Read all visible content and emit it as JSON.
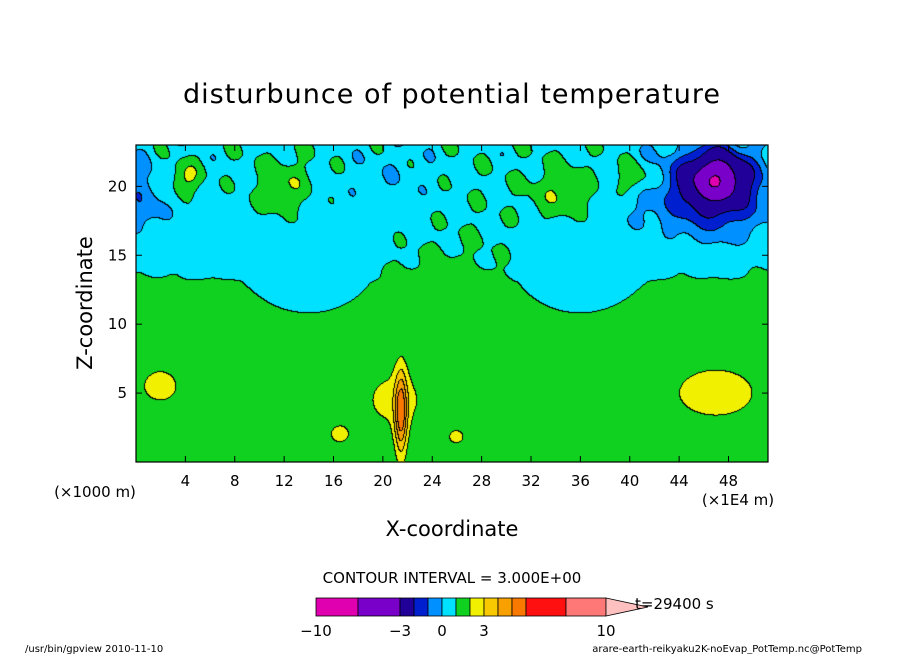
{
  "chart_data": {
    "type": "heatmap",
    "title": "disturbunce of potential temperature",
    "xlabel": "X-coordinate",
    "ylabel": "Z-coordinate",
    "x_unit_left": "(×1000 m)",
    "x_unit_right": "(×1E4 m)",
    "xlim": [
      0,
      51.2
    ],
    "ylim": [
      0,
      23
    ],
    "x_ticks": [
      4,
      8,
      12,
      16,
      20,
      24,
      28,
      32,
      36,
      40,
      44,
      48
    ],
    "y_ticks": [
      5,
      10,
      15,
      20
    ],
    "contour_interval_label": "CONTOUR INTERVAL = 3.000E+00",
    "time_label": "t=29400 s",
    "colorbar": {
      "levels": [
        -10,
        -6,
        -3,
        -2,
        -1,
        0,
        1,
        2,
        3,
        4,
        6,
        10
      ],
      "tick_labels": [
        "−10",
        "−3",
        "0",
        "3",
        "10"
      ],
      "tick_values": [
        -10,
        -3,
        0,
        3,
        10
      ],
      "colors": [
        "#e000b0",
        "#7800c8",
        "#200098",
        "#0020d0",
        "#0090ff",
        "#00e0ff",
        "#10d020",
        "#f0f000",
        "#f8c800",
        "#f8a000",
        "#f87800",
        "#ff1010",
        "#ff7878",
        "#ffc0c0"
      ]
    },
    "blobs": [
      {
        "x": 4,
        "z": 17.5,
        "sx": 3.5,
        "sz": 3.5,
        "v": -0.6
      },
      {
        "x": 47,
        "z": 19.5,
        "sx": 4.5,
        "sz": 3.5,
        "v": -3.2
      },
      {
        "x": 47,
        "z": 20.5,
        "sx": 2.0,
        "sz": 1.6,
        "v": -7
      },
      {
        "x": 0.5,
        "z": 19,
        "sx": 1.5,
        "sz": 3,
        "v": -1.4
      },
      {
        "x": 14,
        "z": 15.5,
        "sx": 5,
        "sz": 4,
        "v": -0.6
      },
      {
        "x": 36,
        "z": 15.5,
        "sx": 5,
        "sz": 4,
        "v": -0.6
      },
      {
        "x": 21,
        "z": 20,
        "sx": 4,
        "sz": 3,
        "v": -0.55
      },
      {
        "x": 41,
        "z": 19,
        "sx": 3,
        "sz": 2.5,
        "v": -0.5
      },
      {
        "x": 4,
        "z": 20.5,
        "sx": 1.4,
        "sz": 1.2,
        "v": 1.6
      },
      {
        "x": 40.5,
        "z": 20.5,
        "sx": 1.6,
        "sz": 1.2,
        "v": 1.5
      },
      {
        "x": 12,
        "z": 20,
        "sx": 2,
        "sz": 2,
        "v": 1.2
      },
      {
        "x": 34.5,
        "z": 19.5,
        "sx": 2.5,
        "sz": 2,
        "v": 1.2
      },
      {
        "x": 47,
        "z": 5,
        "sx": 4.5,
        "sz": 2.5,
        "v": 1.3
      },
      {
        "x": 2,
        "z": 5.5,
        "sx": 2.5,
        "sz": 2,
        "v": 1.1
      },
      {
        "x": 21,
        "z": 4.5,
        "sx": 3,
        "sz": 2.5,
        "v": 1.2
      },
      {
        "x": 21.5,
        "z": 3.5,
        "sx": 0.5,
        "sz": 3,
        "v": 4
      },
      {
        "x": 16.5,
        "z": 2,
        "sx": 1.2,
        "sz": 1,
        "v": 1.1
      },
      {
        "x": 26,
        "z": 1.8,
        "sx": 1,
        "sz": 0.8,
        "v": 1.1
      }
    ],
    "grid": false
  },
  "footer": {
    "left": "/usr/bin/gpview   2010-11-10",
    "right": "arare-earth-reikyaku2K-noEvap_PotTemp.nc@PotTemp"
  }
}
